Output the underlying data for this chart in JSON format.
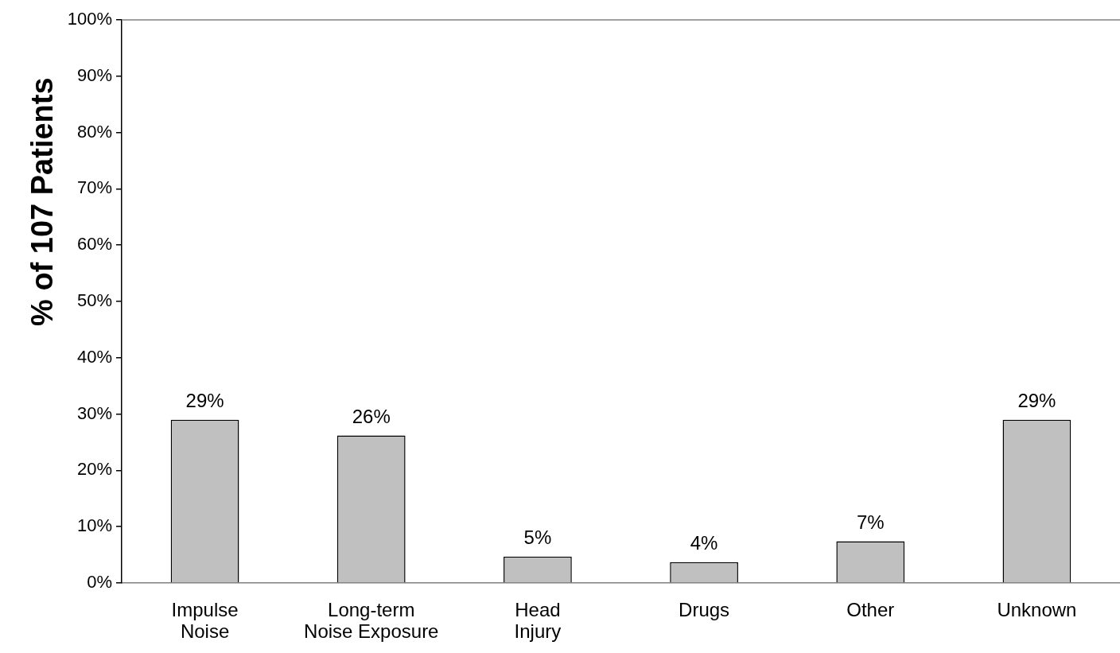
{
  "chart_data": {
    "type": "bar",
    "ylabel": "% of 107 Patients",
    "categories": [
      "Impulse\nNoise",
      "Long-term\nNoise Exposure",
      "Head\nInjury",
      "Drugs",
      "Other",
      "Unknown"
    ],
    "values": [
      29,
      26.2,
      4.7,
      3.7,
      7.4,
      29
    ],
    "value_labels": [
      "29%",
      "26%",
      "5%",
      "4%",
      "7%",
      "29%"
    ],
    "color": "#c0c0c0",
    "ylim": [
      0,
      100
    ],
    "yticks": [
      {
        "value": 0,
        "label": "0%"
      },
      {
        "value": 10,
        "label": "10%"
      },
      {
        "value": 20,
        "label": "20%"
      },
      {
        "value": 30,
        "label": "30%"
      },
      {
        "value": 40,
        "label": "40%"
      },
      {
        "value": 50,
        "label": "50%"
      },
      {
        "value": 60,
        "label": "60%"
      },
      {
        "value": 70,
        "label": "70%"
      },
      {
        "value": 80,
        "label": "80%"
      },
      {
        "value": 90,
        "label": "90%"
      },
      {
        "value": 100,
        "label": "100%"
      }
    ]
  }
}
